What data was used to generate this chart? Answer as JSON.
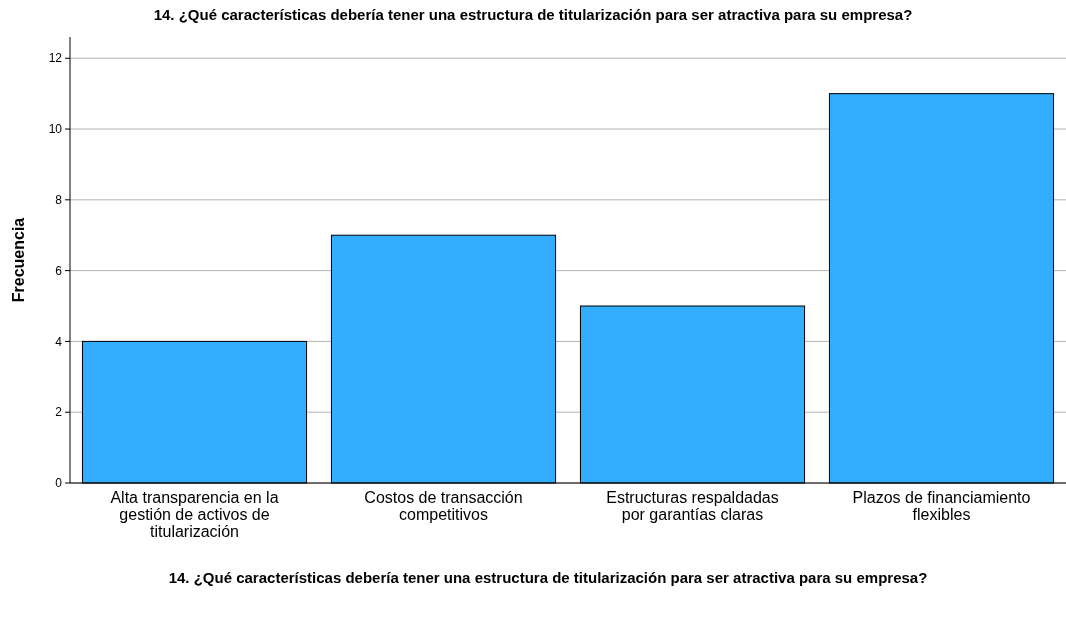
{
  "chart_data": {
    "type": "bar",
    "title": "14. ¿Qué características debería tener una estructura de titularización para ser atractiva para su empresa?",
    "xlabel": "14. ¿Qué características debería tener una estructura de titularización para ser atractiva para su empresa?",
    "ylabel": "Frecuencia",
    "categories": [
      "Alta transparencia en la gestión de activos de titularización",
      "Costos de transacción competitivos",
      "Estructuras respaldadas por garantías claras",
      "Plazos de financiamiento flexibles"
    ],
    "values": [
      4,
      7,
      5,
      11
    ],
    "color": "#33adff",
    "ylim": [
      0,
      12.6
    ],
    "yticks": [
      0,
      2,
      4,
      6,
      8,
      10,
      12
    ],
    "grid": "y"
  }
}
